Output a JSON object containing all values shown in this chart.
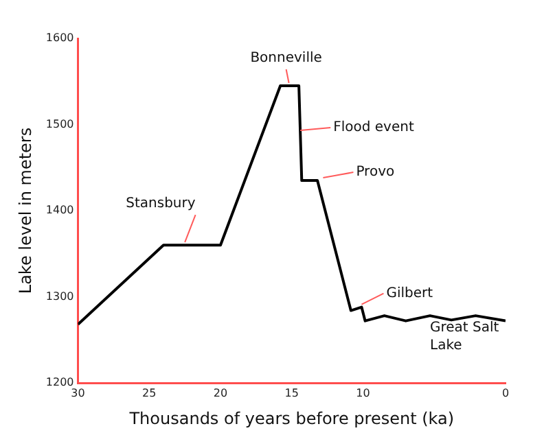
{
  "chart_data": {
    "type": "line",
    "xlabel": "Thousands of years before present (ka)",
    "ylabel": "Lake level in meters",
    "x": [
      30,
      24,
      20,
      15.8,
      14.5,
      14.3,
      13.2,
      10.85,
      10.1,
      9.85,
      8.5,
      7.0,
      5.3,
      3.8,
      2.1,
      0
    ],
    "series": [
      {
        "color": "#000000",
        "values": [
          1268,
          1360,
          1360,
          1545,
          1545,
          1435,
          1435,
          1284,
          1288,
          1272,
          1278,
          1272,
          1278,
          1273,
          1278,
          1272
        ]
      }
    ],
    "xlim": [
      30,
      0
    ],
    "xticks": [
      30,
      25,
      20,
      15,
      10,
      0
    ],
    "ylim": [
      1200,
      1600
    ],
    "yticks": [
      1200,
      1300,
      1400,
      1500,
      1600
    ],
    "grid": false,
    "legend": false,
    "marker": "none",
    "line_style": "solid",
    "annotations": [
      {
        "text": "Stansbury",
        "x": 22.5,
        "y": 1360
      },
      {
        "text": "Bonneville",
        "x": 15.2,
        "y": 1545
      },
      {
        "text": "Flood event",
        "x": 14.4,
        "y": 1490
      },
      {
        "text": "Provo",
        "x": 12.8,
        "y": 1435
      },
      {
        "text": "Gilbert",
        "x": 10.1,
        "y": 1288
      },
      "Great Salt Lake"
    ]
  }
}
